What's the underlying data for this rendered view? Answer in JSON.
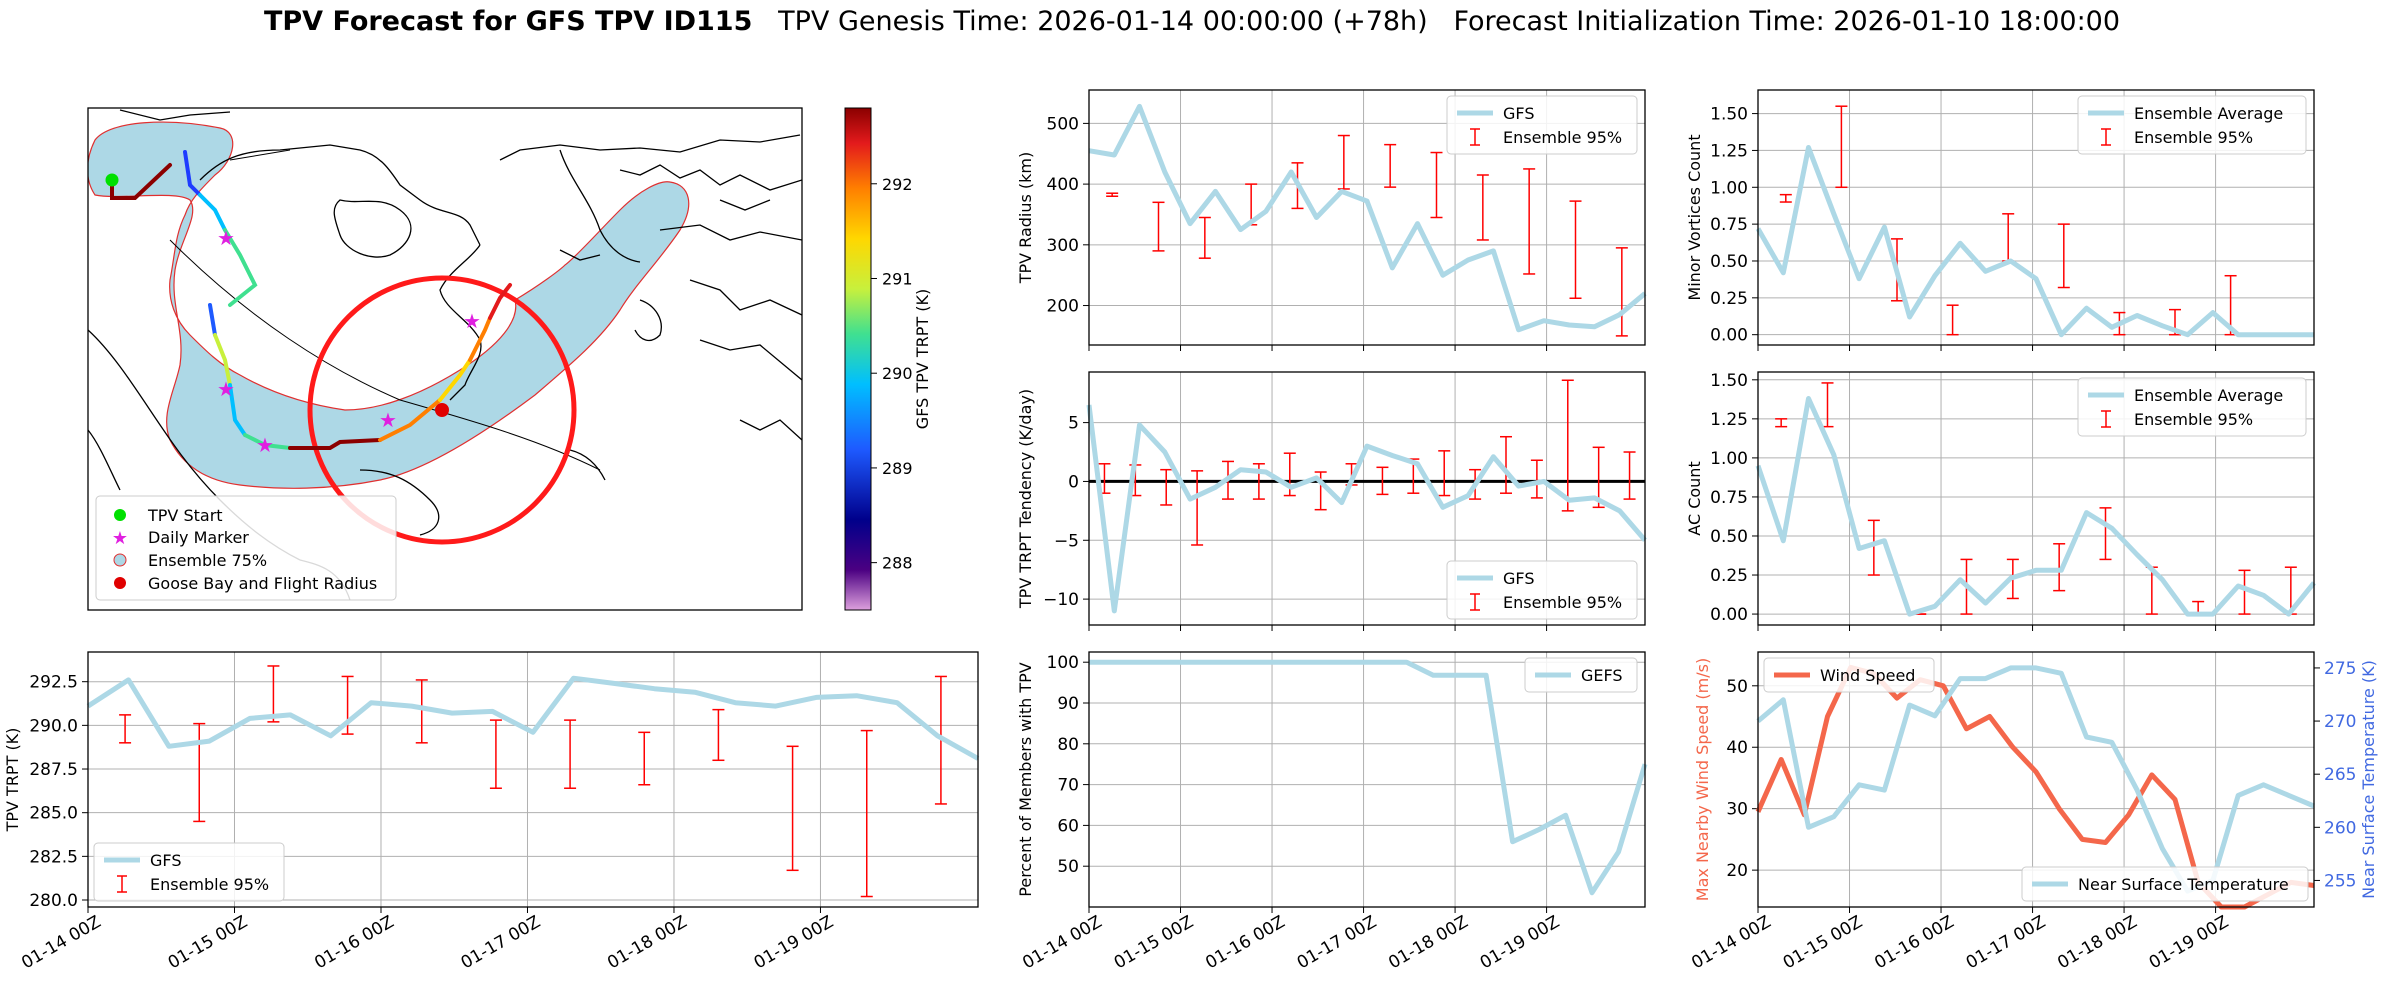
{
  "figure_title": {
    "bold": "TPV Forecast for GFS TPV ID115",
    "genesis": "TPV Genesis Time: 2026-01-14 00:00:00 (+78h)",
    "init": "Forecast Initialization Time: 2026-01-10 18:00:00"
  },
  "time_ticks": [
    "01-14 00Z",
    "01-15 00Z",
    "01-16 00Z",
    "01-17 00Z",
    "01-18 00Z",
    "01-19 00Z"
  ],
  "colors": {
    "gfs_line": "#add8e6",
    "ensemble_err": "#ff0000",
    "wind_line": "#f4674b",
    "temp_label": "#4169e1",
    "map_fill": "#add8e6",
    "flight_radius": "#ff1a1a"
  },
  "map": {
    "legend": [
      {
        "label": "TPV Start",
        "marker": "green-circle"
      },
      {
        "label": "Daily Marker",
        "marker": "magenta-star"
      },
      {
        "label": "Ensemble 75%",
        "marker": "lightblue-circle"
      },
      {
        "label": "Goose Bay and Flight Radius",
        "marker": "red-circle"
      }
    ],
    "colorbar": {
      "label": "GFS TPV TRPT (K)",
      "ticks": [
        "292",
        "291",
        "290",
        "289",
        "288"
      ],
      "range": [
        287.5,
        292.8
      ]
    }
  },
  "chart_data": [
    {
      "id": "radius",
      "type": "line",
      "ylabel": "TPV Radius (km)",
      "ylim": [
        135,
        555
      ],
      "yticks": [
        200,
        300,
        400,
        500
      ],
      "yticklabels": [
        "200",
        "300",
        "400",
        "500"
      ],
      "legend": [
        "GFS",
        "Ensemble 95%"
      ],
      "series": [
        {
          "name": "GFS",
          "values": [
            455,
            448,
            528,
            420,
            335,
            388,
            325,
            355,
            420,
            345,
            388,
            372,
            262,
            335,
            250,
            275,
            290,
            160,
            175,
            168,
            165,
            185,
            220
          ]
        }
      ],
      "errorbars": [
        [
          380,
          385
        ],
        [
          290,
          370
        ],
        [
          278,
          345
        ],
        [
          333,
          400
        ],
        [
          360,
          435
        ],
        [
          392,
          480
        ],
        [
          395,
          465
        ],
        [
          345,
          452
        ],
        [
          308,
          415
        ],
        [
          252,
          425
        ],
        [
          212,
          372
        ],
        [
          150,
          295
        ]
      ]
    },
    {
      "id": "tendency",
      "type": "line",
      "ylabel": "TPV TRPT Tendency (K/day)",
      "ylim": [
        -12.2,
        9.3
      ],
      "yticks": [
        -10,
        -5,
        0,
        5
      ],
      "yticklabels": [
        "−10",
        "−5",
        "0",
        "5"
      ],
      "legend": [
        "GFS",
        "Ensemble 95%"
      ],
      "zero_line": true,
      "series": [
        {
          "name": "GFS",
          "values": [
            6.5,
            -11,
            4.8,
            2.5,
            -1.5,
            -0.5,
            1,
            0.8,
            -0.5,
            0.3,
            -1.8,
            3,
            2.2,
            1.5,
            -2.2,
            -1.2,
            2.1,
            -0.4,
            0,
            -1.6,
            -1.4,
            -2.5,
            -5
          ]
        }
      ],
      "errorbars": [
        [
          -1,
          1.5
        ],
        [
          -1.2,
          1.4
        ],
        [
          -2,
          1
        ],
        [
          -5.4,
          0.9
        ],
        [
          -1.5,
          1.7
        ],
        [
          -1.5,
          1.5
        ],
        [
          -1.2,
          2.4
        ],
        [
          -2.4,
          0.8
        ],
        [
          -0.3,
          1.5
        ],
        [
          -1.1,
          1.2
        ],
        [
          -1,
          1.9
        ],
        [
          -1.2,
          2.6
        ],
        [
          -1.5,
          1
        ],
        [
          -1,
          3.8
        ],
        [
          -1.4,
          1.8
        ],
        [
          -2.5,
          8.6
        ],
        [
          -2.2,
          2.9
        ],
        [
          -1.5,
          2.5
        ]
      ]
    },
    {
      "id": "members",
      "type": "line",
      "ylabel": "Percent of Members with TPV",
      "ylim": [
        40,
        102.5
      ],
      "yticks": [
        50,
        60,
        70,
        80,
        90,
        100
      ],
      "yticklabels": [
        "50",
        "60",
        "70",
        "80",
        "90",
        "100"
      ],
      "legend": [
        "GEFS"
      ],
      "series": [
        {
          "name": "GEFS",
          "values": [
            100,
            100,
            100,
            100,
            100,
            100,
            100,
            100,
            100,
            100,
            100,
            100,
            100,
            96.8,
            96.8,
            96.8,
            56,
            59,
            62.5,
            43.5,
            53.5,
            75
          ]
        }
      ]
    },
    {
      "id": "trpt",
      "type": "line",
      "ylabel": "TPV TRPT (K)",
      "ylim": [
        279.6,
        294.2
      ],
      "yticks": [
        280,
        282.5,
        285,
        287.5,
        290,
        292.5
      ],
      "yticklabels": [
        "280.0",
        "282.5",
        "285.0",
        "287.5",
        "290.0",
        "292.5"
      ],
      "legend": [
        "GFS",
        "Ensemble 95%"
      ],
      "series": [
        {
          "name": "GFS",
          "values": [
            291.1,
            292.6,
            288.8,
            289.1,
            290.4,
            290.6,
            289.4,
            291.3,
            291.1,
            290.7,
            290.8,
            289.6,
            292.7,
            292.4,
            292.1,
            291.9,
            291.3,
            291.1,
            291.6,
            291.7,
            291.3,
            289.4,
            288.1
          ]
        }
      ],
      "errorbars": [
        [
          289,
          290.6
        ],
        [
          284.5,
          290.1
        ],
        [
          290.2,
          293.4
        ],
        [
          289.5,
          292.8
        ],
        [
          289,
          292.6
        ],
        [
          286.4,
          290.3
        ],
        [
          286.4,
          290.3
        ],
        [
          286.6,
          289.6
        ],
        [
          288,
          290.9
        ],
        [
          281.7,
          288.8
        ],
        [
          280.2,
          289.7
        ],
        [
          285.5,
          292.8
        ]
      ]
    },
    {
      "id": "minor",
      "type": "line",
      "ylabel": "Minor Vortices Count",
      "ylim": [
        -0.07,
        1.66
      ],
      "yticks": [
        0,
        0.25,
        0.5,
        0.75,
        1,
        1.25,
        1.5
      ],
      "yticklabels": [
        "0.00",
        "0.25",
        "0.50",
        "0.75",
        "1.00",
        "1.25",
        "1.50"
      ],
      "legend": [
        "Ensemble Average",
        "Ensemble 95%"
      ],
      "series": [
        {
          "name": "Ensemble Average",
          "values": [
            0.72,
            0.42,
            1.27,
            0.82,
            0.38,
            0.73,
            0.12,
            0.4,
            0.62,
            0.43,
            0.5,
            0.38,
            0,
            0.18,
            0.05,
            0.13,
            0.06,
            0,
            0.15,
            0,
            0,
            0,
            0
          ]
        }
      ],
      "errorbars": [
        [
          0.9,
          0.95
        ],
        [
          1,
          1.55
        ],
        [
          0.23,
          0.65
        ],
        [
          0,
          0.2
        ],
        [
          0.5,
          0.82
        ],
        [
          0.32,
          0.75
        ],
        [
          0,
          0.15
        ],
        [
          0,
          0.17
        ],
        [
          0,
          0.4
        ],
        [
          0,
          0
        ]
      ]
    },
    {
      "id": "ac",
      "type": "line",
      "ylabel": "AC Count",
      "ylim": [
        -0.07,
        1.55
      ],
      "yticks": [
        0,
        0.25,
        0.5,
        0.75,
        1,
        1.25,
        1.5
      ],
      "yticklabels": [
        "0.00",
        "0.25",
        "0.50",
        "0.75",
        "1.00",
        "1.25",
        "1.50"
      ],
      "legend": [
        "Ensemble Average",
        "Ensemble 95%"
      ],
      "series": [
        {
          "name": "Ensemble Average",
          "values": [
            0.95,
            0.47,
            1.38,
            1.02,
            0.42,
            0.47,
            0,
            0.05,
            0.22,
            0.07,
            0.23,
            0.28,
            0.28,
            0.65,
            0.55,
            0.38,
            0.22,
            0,
            0,
            0.18,
            0.12,
            0,
            0.2
          ]
        }
      ],
      "errorbars": [
        [
          1.2,
          1.25
        ],
        [
          1.2,
          1.48
        ],
        [
          0.25,
          0.6
        ],
        [
          0,
          0
        ],
        [
          0,
          0.35
        ],
        [
          0.1,
          0.35
        ],
        [
          0.15,
          0.45
        ],
        [
          0.35,
          0.68
        ],
        [
          0,
          0.3
        ],
        [
          0,
          0.08
        ],
        [
          0,
          0.28
        ],
        [
          0,
          0.3
        ]
      ]
    },
    {
      "id": "wind_temp",
      "type": "line",
      "ylabel": "Max Nearby Wind Speed (m/s)",
      "ylim": [
        14,
        55.5
      ],
      "yticks": [
        20,
        30,
        40,
        50
      ],
      "yticklabels": [
        "20",
        "30",
        "40",
        "50"
      ],
      "y2label": "Near Surface Temperature (K)",
      "y2lim": [
        252.5,
        276.5
      ],
      "y2ticks": [
        255,
        260,
        265,
        270,
        275
      ],
      "y2ticklabels": [
        "255",
        "260",
        "265",
        "270",
        "275"
      ],
      "legend": [
        "Wind Speed",
        "Near Surface Temperature"
      ],
      "series": [
        {
          "name": "Wind Speed",
          "axis": "left",
          "values": [
            29.5,
            38,
            29,
            45,
            53,
            52,
            48,
            51,
            50,
            43,
            45,
            40,
            36,
            30,
            25,
            24.5,
            29,
            35.5,
            31.5,
            18,
            14,
            14,
            16,
            18,
            17.5
          ]
        },
        {
          "name": "Near Surface Temperature",
          "axis": "right",
          "values": [
            270,
            272,
            260,
            261,
            264,
            263.5,
            271.5,
            270.5,
            274,
            274,
            275,
            275,
            274.5,
            268.5,
            268,
            263.5,
            258,
            254,
            255,
            263,
            264,
            263,
            262
          ]
        }
      ]
    }
  ]
}
